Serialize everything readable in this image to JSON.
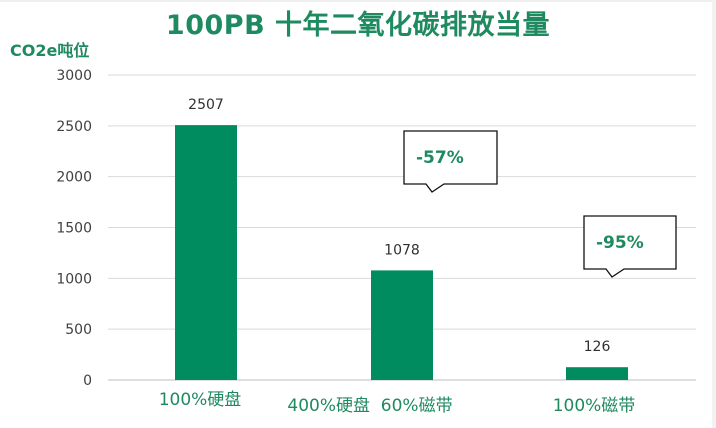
{
  "chart_data": {
    "type": "bar",
    "title": "100PB 十年二氧化碳排放当量",
    "ylabel": "CO2e吨位",
    "categories": [
      "100%硬盘",
      "400%硬盘  60%磁带",
      "100%磁带"
    ],
    "values": [
      2507,
      1078,
      126
    ],
    "ylim": [
      0,
      3000
    ],
    "yticks": [
      0,
      500,
      1000,
      1500,
      2000,
      2500,
      3000
    ],
    "grid": true,
    "legend": "none",
    "annotations": [
      {
        "text": "-57%",
        "category": "400%硬盘  60%磁带"
      },
      {
        "text": "-95%",
        "category": "100%磁带"
      }
    ]
  },
  "colors": {
    "bar": "#008c5f",
    "title": "#1f8a60",
    "grid": "#d9d9d9",
    "axis": "#bfbfbf"
  }
}
